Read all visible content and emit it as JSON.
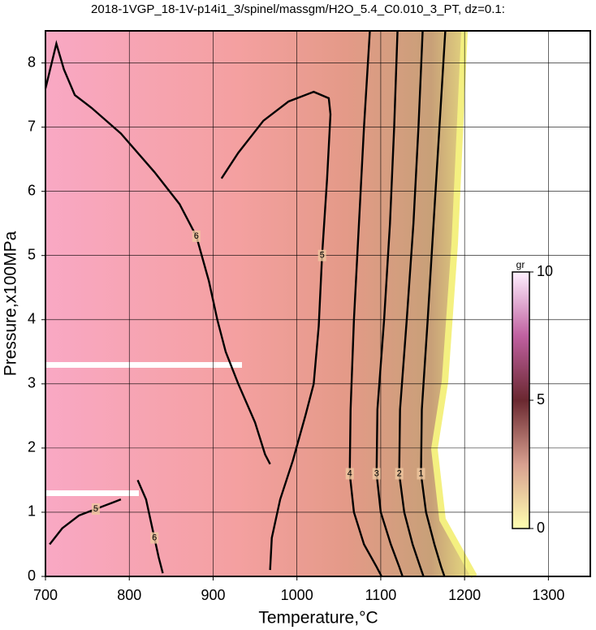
{
  "chart_data": {
    "type": "contour",
    "title": "2018-1VGP_18-1V-p14i1_3/spinel/massgm/H2O_5.4_C0.010_3_PT, dz=0.1:",
    "x_label": "Temperature,°C",
    "y_label": "Pressure,x100MPa",
    "xlim": [
      700,
      1350
    ],
    "xticks": [
      700,
      800,
      900,
      1000,
      1100,
      1200,
      1300
    ],
    "ylim": [
      0,
      8.5
    ],
    "yticks": [
      0,
      1,
      2,
      3,
      4,
      5,
      6,
      7,
      8
    ],
    "grid": true,
    "contours": [
      {
        "level": 6,
        "x": [
          700,
          713,
          722,
          735,
          755,
          790,
          830,
          860,
          880,
          895,
          905,
          915,
          930,
          950,
          962,
          968
        ],
        "y": [
          7.6,
          8.3,
          7.9,
          7.5,
          7.3,
          6.9,
          6.3,
          5.8,
          5.3,
          4.6,
          4.0,
          3.5,
          3.0,
          2.4,
          1.9,
          1.75
        ]
      },
      {
        "level": 5,
        "x": [
          910,
          930,
          960,
          990,
          1020,
          1038,
          1040,
          1036,
          1030,
          1026,
          1020,
          1010,
          995,
          980,
          970,
          968
        ],
        "y": [
          6.2,
          6.6,
          7.1,
          7.4,
          7.55,
          7.45,
          7.2,
          6.2,
          5.0,
          3.9,
          3.0,
          2.5,
          1.8,
          1.2,
          0.6,
          0.1
        ]
      },
      {
        "level": 4,
        "x": [
          1087,
          1080,
          1074,
          1068,
          1064,
          1063,
          1068,
          1080,
          1095,
          1101
        ],
        "y": [
          8.5,
          7.0,
          5.5,
          4.0,
          2.6,
          1.6,
          1.0,
          0.5,
          0.15,
          0
        ]
      },
      {
        "level": 3,
        "x": [
          1120,
          1116,
          1111,
          1104,
          1096,
          1095,
          1100,
          1112,
          1122,
          1126
        ],
        "y": [
          8.5,
          7.0,
          5.5,
          4.0,
          2.6,
          1.6,
          1.0,
          0.5,
          0.15,
          0
        ]
      },
      {
        "level": 2,
        "x": [
          1150,
          1145,
          1139,
          1131,
          1123,
          1122,
          1128,
          1138,
          1147,
          1151
        ],
        "y": [
          8.5,
          7.0,
          5.5,
          4.0,
          2.6,
          1.6,
          1.0,
          0.5,
          0.15,
          0
        ]
      },
      {
        "level": 1,
        "x": [
          1177,
          1170,
          1163,
          1156,
          1149,
          1148,
          1154,
          1164,
          1172,
          1176
        ],
        "y": [
          8.5,
          7.0,
          5.5,
          4.0,
          2.6,
          1.6,
          1.0,
          0.5,
          0.15,
          0
        ]
      },
      {
        "level": 5,
        "x": [
          705,
          720,
          740,
          760,
          780,
          790
        ],
        "y": [
          0.5,
          0.75,
          0.95,
          1.05,
          1.15,
          1.2
        ]
      },
      {
        "level": 6,
        "x": [
          810,
          820,
          825,
          830,
          835,
          840
        ],
        "y": [
          1.5,
          1.2,
          0.9,
          0.6,
          0.3,
          0.05
        ]
      }
    ],
    "colorbar": {
      "label": "gr",
      "lim": [
        0,
        10
      ],
      "ticks": [
        0,
        5,
        10
      ],
      "colors": [
        "#ffffb0",
        "#d8a090",
        "#6a2830",
        "#c060a0",
        "#fff0ff"
      ]
    }
  }
}
